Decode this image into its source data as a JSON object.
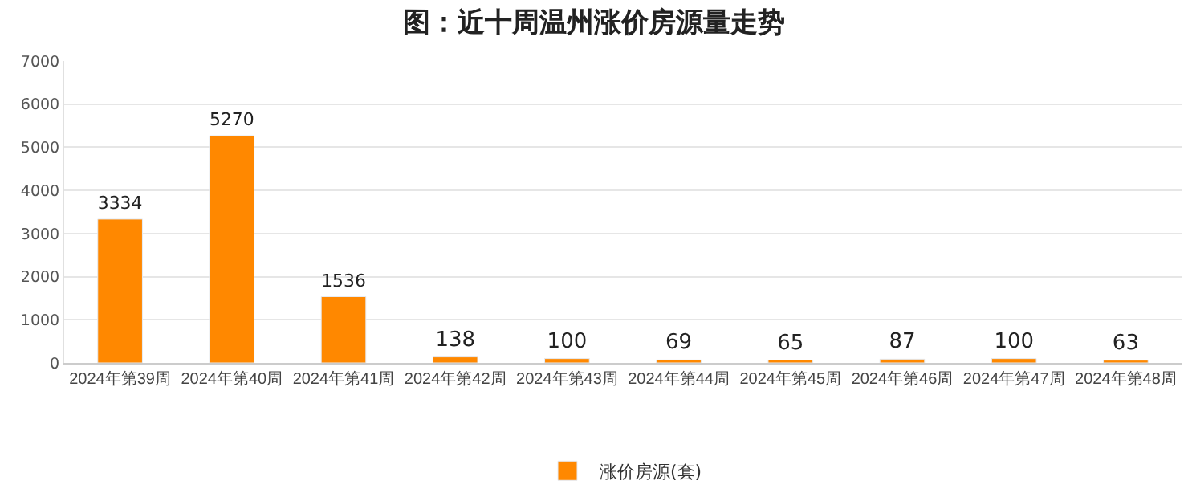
{
  "chart_data": {
    "type": "bar",
    "title": "图：近十周温州涨价房源量走势",
    "categories": [
      "2024年第39周",
      "2024年第40周",
      "2024年第41周",
      "2024年第42周",
      "2024年第43周",
      "2024年第44周",
      "2024年第45周",
      "2024年第46周",
      "2024年第47周",
      "2024年第48周"
    ],
    "series": [
      {
        "name": "涨价房源(套)",
        "color": "#ff8800",
        "values": [
          3334,
          5270,
          1536,
          138,
          100,
          69,
          65,
          87,
          100,
          63
        ]
      }
    ],
    "ylim": [
      0,
      7000
    ],
    "yticks": [
      0,
      1000,
      2000,
      3000,
      4000,
      5000,
      6000,
      7000
    ],
    "grid": "y",
    "legend": "bottom",
    "data_labels": true
  }
}
